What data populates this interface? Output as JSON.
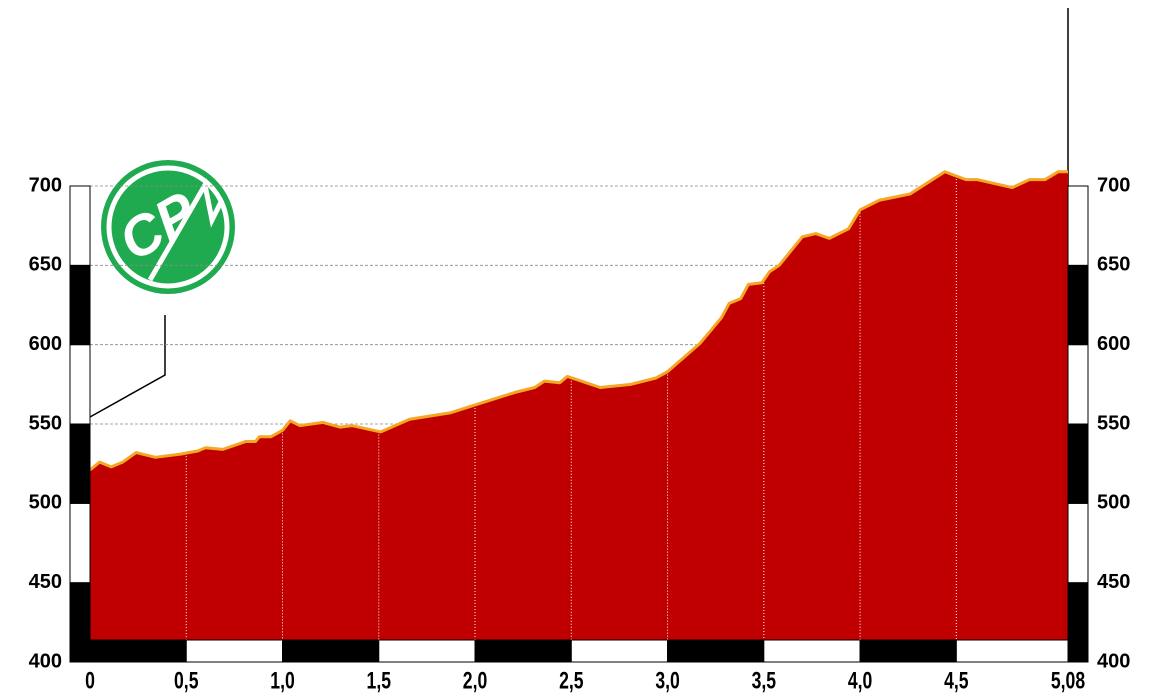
{
  "chart_data": {
    "type": "area",
    "logo_text": "CP",
    "x": [
      0,
      0.05,
      0.11,
      0.17,
      0.24,
      0.34,
      0.47,
      0.56,
      0.6,
      0.69,
      0.81,
      0.86,
      0.88,
      0.94,
      1.0,
      1.04,
      1.09,
      1.21,
      1.3,
      1.36,
      1.51,
      1.66,
      1.87,
      2.0,
      2.21,
      2.31,
      2.36,
      2.44,
      2.48,
      2.65,
      2.81,
      2.94,
      3.0,
      3.17,
      3.28,
      3.32,
      3.38,
      3.42,
      3.49,
      3.53,
      3.58,
      3.7,
      3.77,
      3.84,
      3.94,
      4.0,
      4.1,
      4.26,
      4.44,
      4.55,
      4.61,
      4.79,
      4.88,
      4.96,
      5.03,
      5.08
    ],
    "values": [
      521,
      526,
      523,
      526,
      532,
      529,
      531,
      533,
      535,
      534,
      539,
      539,
      542,
      542,
      546,
      552,
      549,
      551,
      548,
      549,
      545,
      553,
      557,
      562,
      570,
      573,
      577,
      576,
      580,
      573,
      575,
      579,
      583,
      601,
      617,
      626,
      629,
      638,
      639,
      646,
      650,
      668,
      670,
      667,
      673,
      685,
      691,
      695,
      709,
      704,
      704,
      699,
      704,
      704,
      709,
      709
    ],
    "color": "#c00000",
    "line_color": "#f5a623",
    "xlim": [
      0,
      5.08
    ],
    "xticks": [
      {
        "value": 0,
        "label": "0"
      },
      {
        "value": 0.5,
        "label": "0,5"
      },
      {
        "value": 1.0,
        "label": "1,0"
      },
      {
        "value": 1.5,
        "label": "1,5"
      },
      {
        "value": 2.0,
        "label": "2,0"
      },
      {
        "value": 2.5,
        "label": "2,5"
      },
      {
        "value": 3.0,
        "label": "3,0"
      },
      {
        "value": 3.5,
        "label": "3,5"
      },
      {
        "value": 4.0,
        "label": "4,0"
      },
      {
        "value": 4.5,
        "label": "4,5"
      },
      {
        "value": 5.08,
        "label": "5,08"
      }
    ],
    "ylim": [
      400,
      700
    ],
    "yticks": [
      400,
      450,
      500,
      550,
      600,
      650,
      700
    ],
    "grid": true
  }
}
